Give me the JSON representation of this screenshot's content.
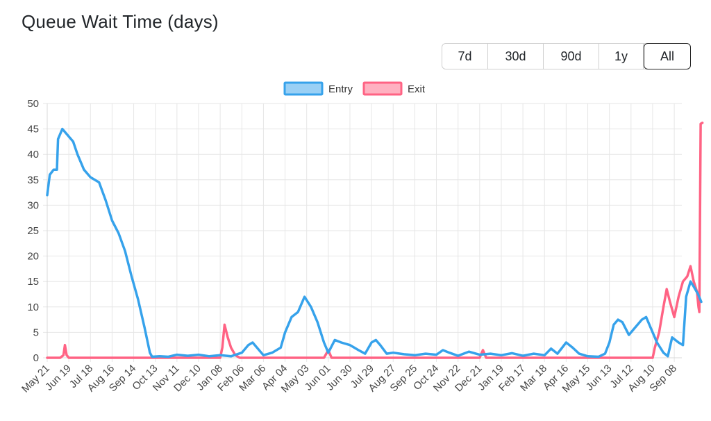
{
  "header": {
    "title": "Queue Wait Time (days)"
  },
  "range": {
    "options": [
      "7d",
      "30d",
      "90d",
      "1y",
      "All"
    ],
    "selected": "All"
  },
  "chart_data": {
    "type": "line",
    "title": "Queue Wait Time (days)",
    "xlabel": "",
    "ylabel": "",
    "ylim": [
      0,
      50
    ],
    "yticks": [
      0,
      5,
      10,
      15,
      20,
      25,
      30,
      35,
      40,
      45,
      50
    ],
    "grid": true,
    "legend": "top-center",
    "categories": [
      "May 21",
      "Jun 19",
      "Jul 18",
      "Aug 16",
      "Sep 14",
      "Oct 13",
      "Nov 11",
      "Dec 10",
      "Jan 08",
      "Feb 06",
      "Mar 06",
      "Apr 04",
      "May 03",
      "Jun 01",
      "Jun 30",
      "Jul 29",
      "Aug 27",
      "Sep 25",
      "Oct 24",
      "Nov 22",
      "Dec 21",
      "Jan 19",
      "Feb 17",
      "Mar 18",
      "Apr 16",
      "May 15",
      "Jun 13",
      "Jul 12",
      "Aug 10",
      "Sep 08"
    ],
    "series": [
      {
        "name": "Entry",
        "color": "#36a2eb",
        "fill": "#9ad0f5",
        "points": [
          [
            0,
            32
          ],
          [
            0.12,
            36
          ],
          [
            0.3,
            37
          ],
          [
            0.45,
            37
          ],
          [
            0.5,
            43
          ],
          [
            0.7,
            45
          ],
          [
            0.9,
            44
          ],
          [
            1.2,
            42.5
          ],
          [
            1.4,
            40
          ],
          [
            1.7,
            37
          ],
          [
            2.0,
            35.5
          ],
          [
            2.4,
            34.5
          ],
          [
            2.7,
            31
          ],
          [
            3.0,
            27
          ],
          [
            3.3,
            24.5
          ],
          [
            3.6,
            21
          ],
          [
            3.9,
            16
          ],
          [
            4.2,
            11.5
          ],
          [
            4.5,
            6
          ],
          [
            4.75,
            1
          ],
          [
            4.85,
            0.2
          ],
          [
            5.2,
            0.3
          ],
          [
            5.6,
            0.2
          ],
          [
            6.0,
            0.6
          ],
          [
            6.5,
            0.4
          ],
          [
            7.0,
            0.6
          ],
          [
            7.5,
            0.3
          ],
          [
            8.0,
            0.5
          ],
          [
            8.5,
            0.3
          ],
          [
            9.0,
            1
          ],
          [
            9.3,
            2.5
          ],
          [
            9.5,
            3
          ],
          [
            9.7,
            2
          ],
          [
            10.0,
            0.5
          ],
          [
            10.4,
            1
          ],
          [
            10.8,
            2
          ],
          [
            11.0,
            5
          ],
          [
            11.3,
            8
          ],
          [
            11.6,
            9
          ],
          [
            11.9,
            12
          ],
          [
            12.2,
            10
          ],
          [
            12.5,
            7
          ],
          [
            12.8,
            3
          ],
          [
            13.0,
            1
          ],
          [
            13.3,
            3.5
          ],
          [
            13.6,
            3
          ],
          [
            14.0,
            2.5
          ],
          [
            14.4,
            1.5
          ],
          [
            14.7,
            0.8
          ],
          [
            15.0,
            3
          ],
          [
            15.2,
            3.5
          ],
          [
            15.4,
            2.5
          ],
          [
            15.7,
            0.8
          ],
          [
            16.0,
            1
          ],
          [
            16.5,
            0.7
          ],
          [
            17.0,
            0.5
          ],
          [
            17.5,
            0.8
          ],
          [
            18.0,
            0.6
          ],
          [
            18.3,
            1.5
          ],
          [
            18.6,
            1
          ],
          [
            19.0,
            0.4
          ],
          [
            19.5,
            1.2
          ],
          [
            20.0,
            0.6
          ],
          [
            20.5,
            0.8
          ],
          [
            21.0,
            0.5
          ],
          [
            21.5,
            0.9
          ],
          [
            22.0,
            0.4
          ],
          [
            22.5,
            0.8
          ],
          [
            23.0,
            0.5
          ],
          [
            23.3,
            1.8
          ],
          [
            23.6,
            0.8
          ],
          [
            24.0,
            3
          ],
          [
            24.3,
            2
          ],
          [
            24.6,
            0.8
          ],
          [
            25.0,
            0.3
          ],
          [
            25.5,
            0.2
          ],
          [
            25.8,
            0.8
          ],
          [
            26.0,
            3
          ],
          [
            26.2,
            6.5
          ],
          [
            26.4,
            7.5
          ],
          [
            26.6,
            7
          ],
          [
            26.9,
            4.5
          ],
          [
            27.2,
            6
          ],
          [
            27.5,
            7.5
          ],
          [
            27.7,
            8
          ],
          [
            27.9,
            6
          ],
          [
            28.2,
            3
          ],
          [
            28.5,
            1
          ],
          [
            28.7,
            0.3
          ],
          [
            28.9,
            4
          ],
          [
            29.2,
            3
          ],
          [
            29.4,
            2.5
          ],
          [
            29.55,
            12
          ],
          [
            29.75,
            15
          ],
          [
            29.9,
            14
          ],
          [
            30.1,
            12.5
          ],
          [
            30.25,
            11
          ]
        ]
      },
      {
        "name": "Exit",
        "color": "#ff6384",
        "fill": "#ffb1c1",
        "points": [
          [
            0,
            0
          ],
          [
            0.6,
            0
          ],
          [
            0.75,
            0.5
          ],
          [
            0.82,
            2.5
          ],
          [
            0.9,
            0.5
          ],
          [
            1.0,
            0
          ],
          [
            8.0,
            0
          ],
          [
            8.1,
            2
          ],
          [
            8.2,
            6.5
          ],
          [
            8.35,
            4
          ],
          [
            8.5,
            2
          ],
          [
            8.7,
            0.5
          ],
          [
            8.9,
            0
          ],
          [
            12.8,
            0
          ],
          [
            13.0,
            1.5
          ],
          [
            13.15,
            0
          ],
          [
            20.0,
            0
          ],
          [
            20.15,
            1.5
          ],
          [
            20.3,
            0
          ],
          [
            28.0,
            0
          ],
          [
            28.1,
            2
          ],
          [
            28.3,
            5
          ],
          [
            28.5,
            10
          ],
          [
            28.65,
            13.5
          ],
          [
            28.8,
            11
          ],
          [
            29.0,
            8
          ],
          [
            29.2,
            12
          ],
          [
            29.4,
            15
          ],
          [
            29.6,
            16
          ],
          [
            29.75,
            18
          ],
          [
            29.9,
            15
          ],
          [
            30.05,
            13
          ],
          [
            30.12,
            10
          ],
          [
            30.16,
            9
          ],
          [
            30.22,
            46
          ],
          [
            30.3,
            46.2
          ]
        ]
      }
    ]
  }
}
